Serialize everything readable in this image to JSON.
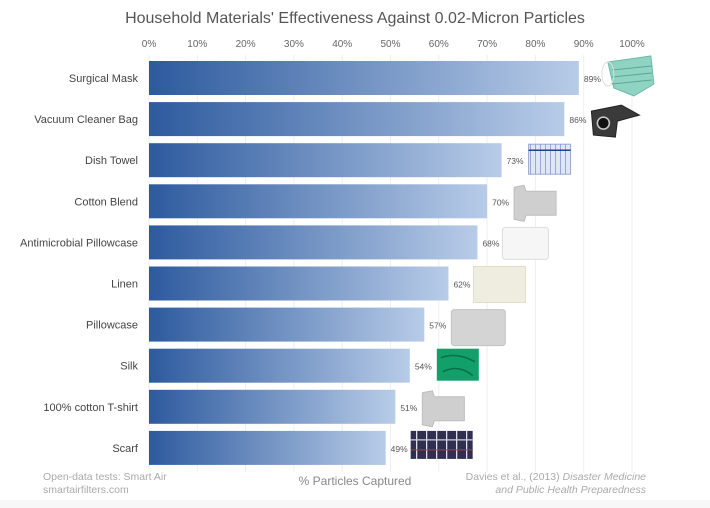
{
  "chart_data": {
    "type": "bar",
    "orientation": "horizontal",
    "title": "Household Materials' Effectiveness Against 0.02-Micron Particles",
    "xlabel": "% Particles Captured",
    "ylabel": "",
    "xlim": [
      0,
      100
    ],
    "x_ticks": [
      "0%",
      "10%",
      "20%",
      "30%",
      "40%",
      "50%",
      "60%",
      "70%",
      "80%",
      "90%",
      "100%"
    ],
    "x_tick_values": [
      0,
      10,
      20,
      30,
      40,
      50,
      60,
      70,
      80,
      90,
      100
    ],
    "grid": true,
    "categories": [
      "Surgical Mask",
      "Vacuum Cleaner Bag",
      "Dish Towel",
      "Cotton Blend",
      "Antimicrobial Pillowcase",
      "Linen",
      "Pillowcase",
      "Silk",
      "100% cotton T-shirt",
      "Scarf"
    ],
    "values": [
      89,
      86,
      73,
      70,
      68,
      62,
      57,
      54,
      51,
      49
    ],
    "data_labels": [
      "89%",
      "86%",
      "73%",
      "70%",
      "68%",
      "62%",
      "57%",
      "54%",
      "51%",
      "49%"
    ],
    "item_icons": [
      "surgical-mask-image",
      "vacuum-bag-image",
      "dish-towel-image",
      "cotton-blend-shirt-image",
      "antimicrobial-pillowcase-image",
      "linen-fabric-image",
      "pillowcase-image",
      "silk-fabric-image",
      "cotton-tshirt-image",
      "plaid-scarf-image"
    ],
    "colors": {
      "bar_start": "#2d5a9e",
      "bar_end": "#b8cce8",
      "grid": "#eeeeee"
    }
  },
  "footer": {
    "source_left_line1": "Open-data tests: Smart Air",
    "source_left_line2": "smartairfilters.com",
    "source_right_prefix": "Davies et al., (2013) ",
    "source_right_italic1": "Disaster Medicine",
    "source_right_italic2": "and Public Health Preparedness"
  }
}
